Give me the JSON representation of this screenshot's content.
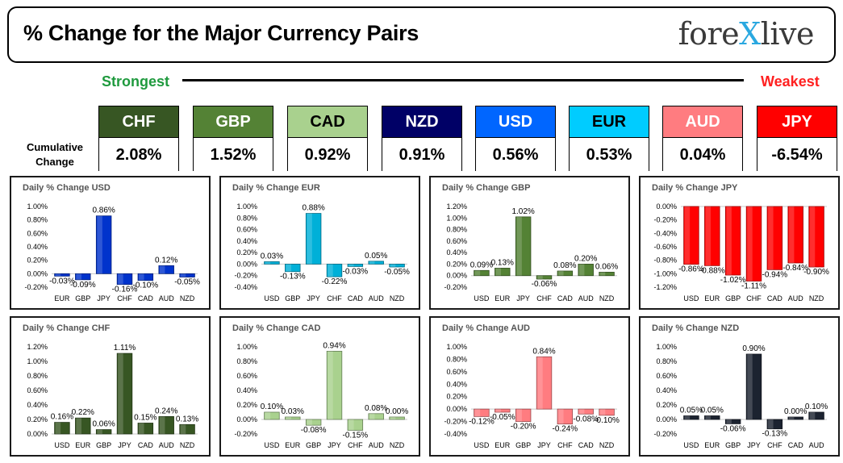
{
  "header": {
    "title": "% Change for the Major Currency Pairs",
    "logo_prefix": "fore",
    "logo_x": "X",
    "logo_suffix": "live"
  },
  "scale": {
    "strongest_label": "Strongest",
    "weakest_label": "Weakest"
  },
  "cumulative_label": "Cumulative Change",
  "currencies": [
    {
      "code": "CHF",
      "value": "2.08%",
      "bg": "#375623",
      "fg": "#ffffff"
    },
    {
      "code": "GBP",
      "value": "1.52%",
      "bg": "#548235",
      "fg": "#ffffff"
    },
    {
      "code": "CAD",
      "value": "0.92%",
      "bg": "#a9d18e",
      "fg": "#000000"
    },
    {
      "code": "NZD",
      "value": "0.91%",
      "bg": "#000066",
      "fg": "#ffffff"
    },
    {
      "code": "USD",
      "value": "0.56%",
      "bg": "#0066ff",
      "fg": "#ffffff"
    },
    {
      "code": "EUR",
      "value": "0.53%",
      "bg": "#00ccff",
      "fg": "#000000"
    },
    {
      "code": "AUD",
      "value": "0.04%",
      "bg": "#ff7c80",
      "fg": "#ffffff"
    },
    {
      "code": "JPY",
      "value": "-6.54%",
      "bg": "#ff0000",
      "fg": "#ffffff"
    }
  ],
  "chart_data": [
    {
      "type": "bar",
      "title": "Daily % Change USD",
      "color": "#0033cc",
      "categories": [
        "EUR",
        "GBP",
        "JPY",
        "CHF",
        "CAD",
        "AUD",
        "NZD"
      ],
      "values": [
        -0.03,
        -0.09,
        0.86,
        -0.16,
        -0.1,
        0.12,
        -0.05
      ],
      "labels": [
        "-0.03%",
        "-0.09%",
        "0.86%",
        "-0.16%",
        "-0.10%",
        "0.12%",
        "-0.05%"
      ],
      "ylim": [
        -0.2,
        1.0
      ],
      "ticks": [
        "1.00%",
        "0.80%",
        "0.60%",
        "0.40%",
        "0.20%",
        "0.00%",
        "-0.20%"
      ]
    },
    {
      "type": "bar",
      "title": "Daily % Change EUR",
      "color": "#00b0d8",
      "categories": [
        "USD",
        "GBP",
        "JPY",
        "CHF",
        "CAD",
        "AUD",
        "NZD"
      ],
      "values": [
        0.03,
        -0.13,
        0.88,
        -0.22,
        -0.03,
        0.05,
        -0.05
      ],
      "labels": [
        "0.03%",
        "-0.13%",
        "0.88%",
        "-0.22%",
        "-0.03%",
        "0.05%",
        "-0.05%"
      ],
      "ylim": [
        -0.4,
        1.0
      ],
      "ticks": [
        "1.00%",
        "0.80%",
        "0.60%",
        "0.40%",
        "0.20%",
        "0.00%",
        "-0.20%",
        "-0.40%"
      ]
    },
    {
      "type": "bar",
      "title": "Daily % Change GBP",
      "color": "#548235",
      "categories": [
        "USD",
        "EUR",
        "JPY",
        "CHF",
        "CAD",
        "AUD",
        "NZD"
      ],
      "values": [
        0.09,
        0.13,
        1.02,
        -0.06,
        0.08,
        0.2,
        0.06
      ],
      "labels": [
        "0.09%",
        "0.13%",
        "1.02%",
        "-0.06%",
        "0.08%",
        "0.20%",
        "0.06%"
      ],
      "ylim": [
        -0.2,
        1.2
      ],
      "ticks": [
        "1.20%",
        "1.00%",
        "0.80%",
        "0.60%",
        "0.40%",
        "0.20%",
        "0.00%",
        "-0.20%"
      ]
    },
    {
      "type": "bar",
      "title": "Daily % Change JPY",
      "color": "#ff0000",
      "categories": [
        "USD",
        "EUR",
        "GBP",
        "CHF",
        "CAD",
        "AUD",
        "NZD"
      ],
      "values": [
        -0.86,
        -0.88,
        -1.02,
        -1.11,
        -0.94,
        -0.84,
        -0.9
      ],
      "labels": [
        "-0.86%",
        "-0.88%",
        "-1.02%",
        "-1.11%",
        "-0.94%",
        "-0.84%",
        "-0.90%"
      ],
      "ylim": [
        -1.2,
        0.0
      ],
      "ticks": [
        "0.00%",
        "-0.20%",
        "-0.40%",
        "-0.60%",
        "-0.80%",
        "-1.00%",
        "-1.20%"
      ]
    },
    {
      "type": "bar",
      "title": "Daily % Change CHF",
      "color": "#375623",
      "categories": [
        "USD",
        "EUR",
        "GBP",
        "JPY",
        "CAD",
        "AUD",
        "NZD"
      ],
      "values": [
        0.16,
        0.22,
        0.06,
        1.11,
        0.15,
        0.24,
        0.13
      ],
      "labels": [
        "0.16%",
        "0.22%",
        "0.06%",
        "1.11%",
        "0.15%",
        "0.24%",
        "0.13%"
      ],
      "ylim": [
        0.0,
        1.2
      ],
      "ticks": [
        "1.20%",
        "1.00%",
        "0.80%",
        "0.60%",
        "0.40%",
        "0.20%",
        "0.00%"
      ]
    },
    {
      "type": "bar",
      "title": "Daily % Change CAD",
      "color": "#a9d18e",
      "categories": [
        "USD",
        "EUR",
        "GBP",
        "JPY",
        "CHF",
        "AUD",
        "NZD"
      ],
      "values": [
        0.1,
        0.03,
        -0.08,
        0.94,
        -0.15,
        0.08,
        0.0
      ],
      "labels": [
        "0.10%",
        "0.03%",
        "-0.08%",
        "0.94%",
        "-0.15%",
        "0.08%",
        "0.00%"
      ],
      "ylim": [
        -0.2,
        1.0
      ],
      "ticks": [
        "1.00%",
        "0.80%",
        "0.60%",
        "0.40%",
        "0.20%",
        "0.00%",
        "-0.20%"
      ]
    },
    {
      "type": "bar",
      "title": "Daily % Change AUD",
      "color": "#ff7c80",
      "categories": [
        "USD",
        "EUR",
        "GBP",
        "JPY",
        "CHF",
        "CAD",
        "NZD"
      ],
      "values": [
        -0.12,
        -0.05,
        -0.2,
        0.84,
        -0.24,
        -0.08,
        -0.1
      ],
      "labels": [
        "-0.12%",
        "-0.05%",
        "-0.20%",
        "0.84%",
        "-0.24%",
        "-0.08%",
        "-0.10%"
      ],
      "ylim": [
        -0.4,
        1.0
      ],
      "ticks": [
        "1.00%",
        "0.80%",
        "0.60%",
        "0.40%",
        "0.20%",
        "0.00%",
        "-0.20%",
        "-0.40%"
      ]
    },
    {
      "type": "bar",
      "title": "Daily % Change NZD",
      "color": "#1c2330",
      "categories": [
        "USD",
        "EUR",
        "GBP",
        "JPY",
        "CHF",
        "CAD",
        "AUD"
      ],
      "values": [
        0.05,
        0.05,
        -0.06,
        0.9,
        -0.13,
        0.0,
        0.1
      ],
      "labels": [
        "0.05%",
        "0.05%",
        "-0.06%",
        "0.90%",
        "-0.13%",
        "0.00%",
        "0.10%"
      ],
      "ylim": [
        -0.2,
        1.0
      ],
      "ticks": [
        "1.00%",
        "0.80%",
        "0.60%",
        "0.40%",
        "0.20%",
        "0.00%",
        "-0.20%"
      ]
    }
  ]
}
